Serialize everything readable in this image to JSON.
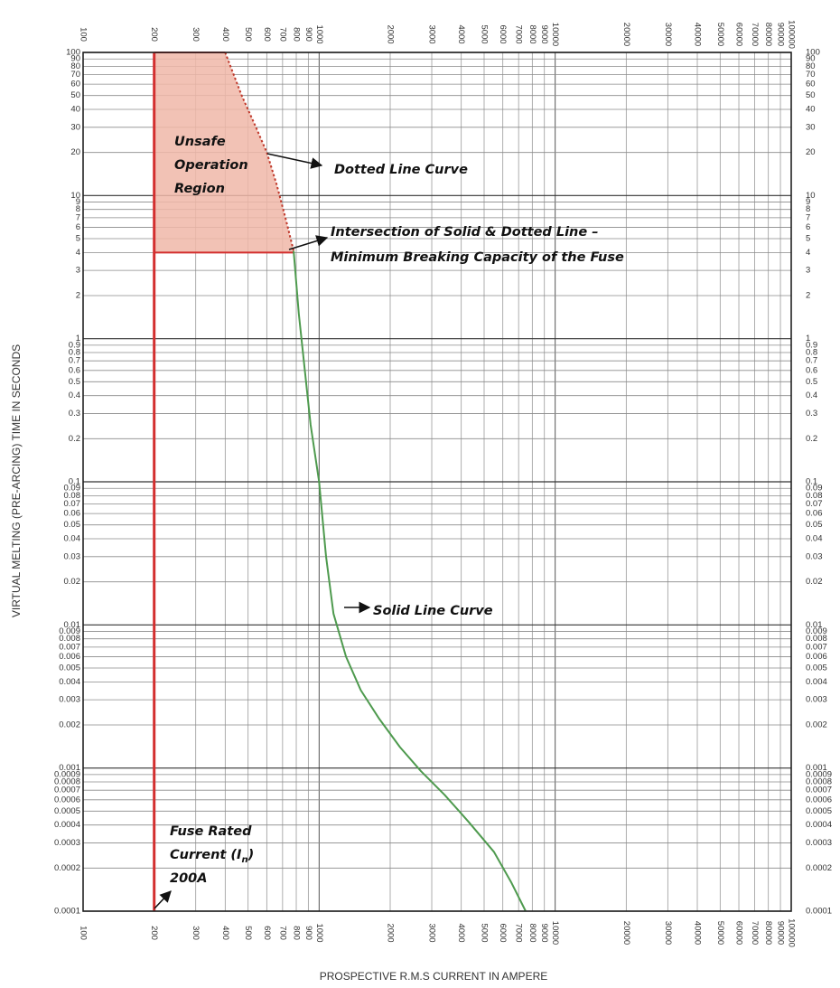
{
  "chart_data": {
    "type": "line",
    "xscale": "log",
    "yscale": "log",
    "xlim": [
      100,
      100000
    ],
    "ylim": [
      0.0001,
      100
    ],
    "xlabel": "PROSPECTIVE R.M.S CURRENT IN AMPERE",
    "ylabel": "VIRTUAL MELTING (PRE-ARCING) TIME IN SECONDS",
    "grid": true,
    "x_ticks": [
      100,
      200,
      300,
      400,
      500,
      600,
      700,
      800,
      900,
      1000,
      2000,
      3000,
      4000,
      5000,
      6000,
      7000,
      8000,
      9000,
      10000,
      20000,
      30000,
      40000,
      50000,
      60000,
      70000,
      80000,
      90000,
      100000
    ],
    "y_ticks": [
      0.0001,
      0.0002,
      0.0003,
      0.0004,
      0.0005,
      0.0006,
      0.0007,
      0.0008,
      0.0009,
      0.001,
      0.002,
      0.003,
      0.004,
      0.005,
      0.006,
      0.007,
      0.008,
      0.009,
      0.01,
      0.02,
      0.03,
      0.04,
      0.05,
      0.06,
      0.07,
      0.08,
      0.09,
      0.1,
      0.2,
      0.3,
      0.4,
      0.5,
      0.6,
      0.7,
      0.8,
      0.9,
      1,
      2,
      3,
      4,
      5,
      6,
      7,
      8,
      9,
      10,
      20,
      30,
      40,
      50,
      60,
      70,
      80,
      90,
      100
    ],
    "series": [
      {
        "style": "dotted",
        "color": "#c0392b",
        "points": [
          [
            400,
            100
          ],
          [
            470,
            50
          ],
          [
            540,
            30
          ],
          [
            600,
            20
          ],
          [
            660,
            12
          ],
          [
            720,
            7
          ],
          [
            780,
            4.1
          ]
        ]
      },
      {
        "style": "solid",
        "color": "#4e9a4e",
        "points": [
          [
            780,
            4.1
          ],
          [
            820,
            1.5
          ],
          [
            870,
            0.6
          ],
          [
            920,
            0.25
          ],
          [
            1000,
            0.1
          ],
          [
            1070,
            0.03
          ],
          [
            1150,
            0.012
          ],
          [
            1300,
            0.006
          ],
          [
            1500,
            0.0035
          ],
          [
            1800,
            0.0022
          ],
          [
            2200,
            0.0014
          ],
          [
            2700,
            0.00095
          ],
          [
            3400,
            0.00065
          ],
          [
            4300,
            0.00042
          ],
          [
            5500,
            0.00026
          ],
          [
            6500,
            0.00016
          ],
          [
            7500,
            0.0001
          ]
        ]
      },
      {
        "style": "solid",
        "color": "#d32f2f",
        "points": [
          [
            200,
            0.0001
          ],
          [
            200,
            100
          ]
        ]
      }
    ],
    "regions": [
      {
        "color": "#f0b7a8",
        "points": [
          [
            200,
            100
          ],
          [
            400,
            100
          ],
          [
            470,
            50
          ],
          [
            540,
            30
          ],
          [
            600,
            20
          ],
          [
            660,
            12
          ],
          [
            720,
            7
          ],
          [
            780,
            4.1
          ],
          [
            780,
            4
          ],
          [
            200,
            4
          ]
        ]
      }
    ],
    "region_border": [
      [
        200,
        4
      ],
      [
        780,
        4
      ]
    ],
    "annotations": {
      "unsafe": [
        "Unsafe",
        "Operation",
        "Region"
      ],
      "dotted": "Dotted Line Curve",
      "intersection": [
        "Intersection of Solid & Dotted Line –",
        "Minimum Breaking Capacity of the Fuse"
      ],
      "solid": "Solid Line Curve",
      "fuse_line1": "Fuse Rated",
      "fuse_current": "Current (I",
      "fuse_sub": "n",
      "fuse_close": ")",
      "fuse_value": "200A"
    }
  }
}
